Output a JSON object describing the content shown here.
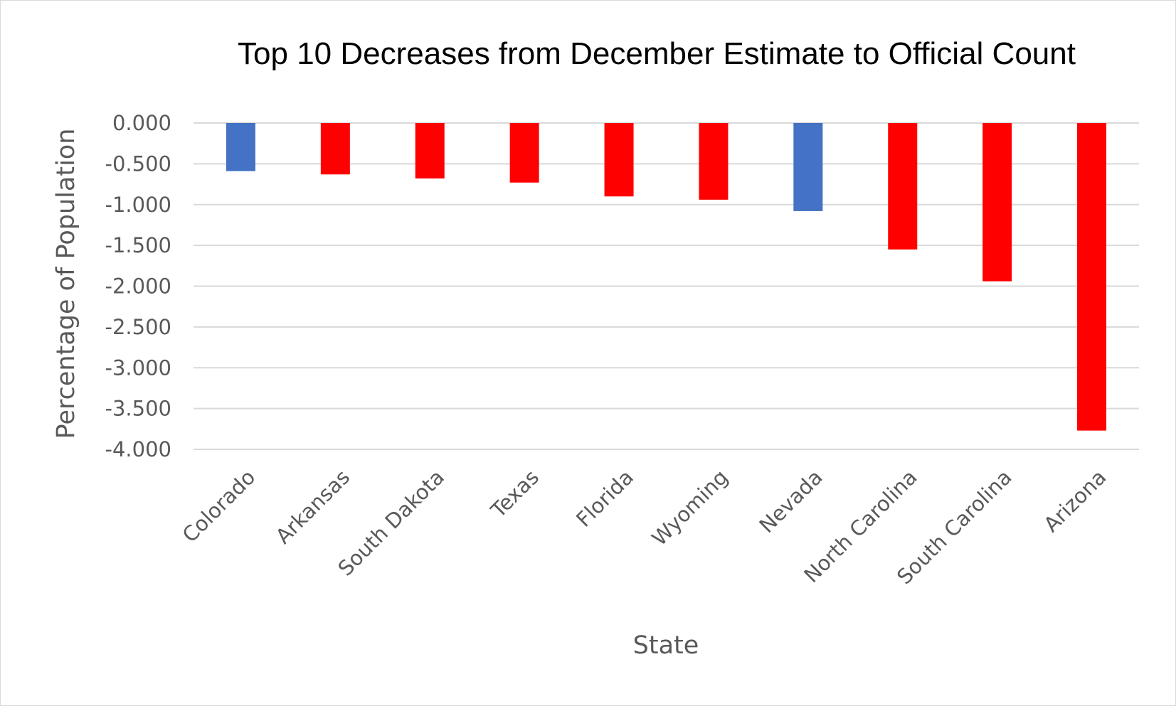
{
  "chart_data": {
    "type": "bar",
    "title": "Top 10 Decreases from December Estimate to Official Count",
    "xlabel": "State",
    "ylabel": "Percentage of Population",
    "categories": [
      "Colorado",
      "Arkansas",
      "South Dakota",
      "Texas",
      "Florida",
      "Wyoming",
      "Nevada",
      "North Carolina",
      "South Carolina",
      "Arizona"
    ],
    "values": [
      -0.59,
      -0.63,
      -0.68,
      -0.73,
      -0.9,
      -0.94,
      -1.08,
      -1.55,
      -1.94,
      -3.77
    ],
    "bar_colors": [
      "#4472c4",
      "#ff0000",
      "#ff0000",
      "#ff0000",
      "#ff0000",
      "#ff0000",
      "#4472c4",
      "#ff0000",
      "#ff0000",
      "#ff0000"
    ],
    "ylim": [
      -4.0,
      0.0
    ],
    "yticks": [
      0.0,
      -0.5,
      -1.0,
      -1.5,
      -2.0,
      -2.5,
      -3.0,
      -3.5,
      -4.0
    ],
    "ytick_labels": [
      "0.000",
      "-0.500",
      "-1.000",
      "-1.500",
      "-2.000",
      "-2.500",
      "-3.000",
      "-3.500",
      "-4.000"
    ],
    "grid": true,
    "legend": "none"
  }
}
